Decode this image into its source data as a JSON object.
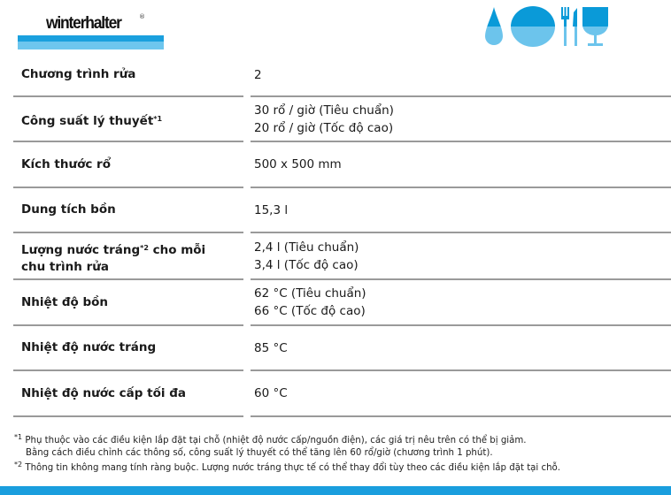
{
  "brand": {
    "name": "winterhalter",
    "registered": "®",
    "colors": {
      "dark_blue": "#1aa0de",
      "light_blue": "#6ec6ee"
    }
  },
  "header_icons": [
    "water-drop-icon",
    "plate-icon",
    "fork-icon",
    "knife-icon",
    "glass-icon"
  ],
  "specs": [
    {
      "label": "Chương trình rửa",
      "sup": "",
      "label_rest": "",
      "values": [
        "2"
      ]
    },
    {
      "label": "Công suất lý thuyết",
      "sup": "*1",
      "label_rest": "",
      "values": [
        "30 rổ / giờ (Tiêu chuẩn)",
        "20 rổ / giờ (Tốc độ cao)"
      ]
    },
    {
      "label": "Kích thước rổ",
      "sup": "",
      "label_rest": "",
      "values": [
        "500 x 500 mm"
      ]
    },
    {
      "label": "Dung tích bồn",
      "sup": "",
      "label_rest": "",
      "values": [
        "15,3 l"
      ]
    },
    {
      "label": "Lượng nước tráng",
      "sup": "*2",
      "label_rest": " cho mỗi chu trình rửa",
      "values": [
        "2,4 l (Tiêu chuẩn)",
        "3,4 l (Tốc độ cao)"
      ]
    },
    {
      "label": "Nhiệt độ bồn",
      "sup": "",
      "label_rest": "",
      "values": [
        "62 °C (Tiêu chuẩn)",
        "66 °C (Tốc độ cao)"
      ]
    },
    {
      "label": "Nhiệt độ nước tráng",
      "sup": "",
      "label_rest": "",
      "values": [
        "85 °C"
      ]
    },
    {
      "label": "Nhiệt độ nước cấp tối đa",
      "sup": "",
      "label_rest": "",
      "values": [
        "60 °C"
      ]
    }
  ],
  "footnotes": [
    {
      "mark": "*1",
      "lines": [
        "Phụ thuộc vào các điều kiện lắp đặt tại chỗ (nhiệt độ nước cấp/nguồn điện), các giá trị nêu trên có thể bị giảm.",
        "Bằng cách điều chỉnh các thông số, công suất lý thuyết có thể tăng lên 60 rổ/giờ (chương trình 1 phút)."
      ]
    },
    {
      "mark": "*2",
      "lines": [
        "Thông tin không mang tính ràng buộc. Lượng nước tráng thực tế có thể thay đổi tùy theo các điều kiện lắp đặt tại chỗ."
      ]
    }
  ]
}
